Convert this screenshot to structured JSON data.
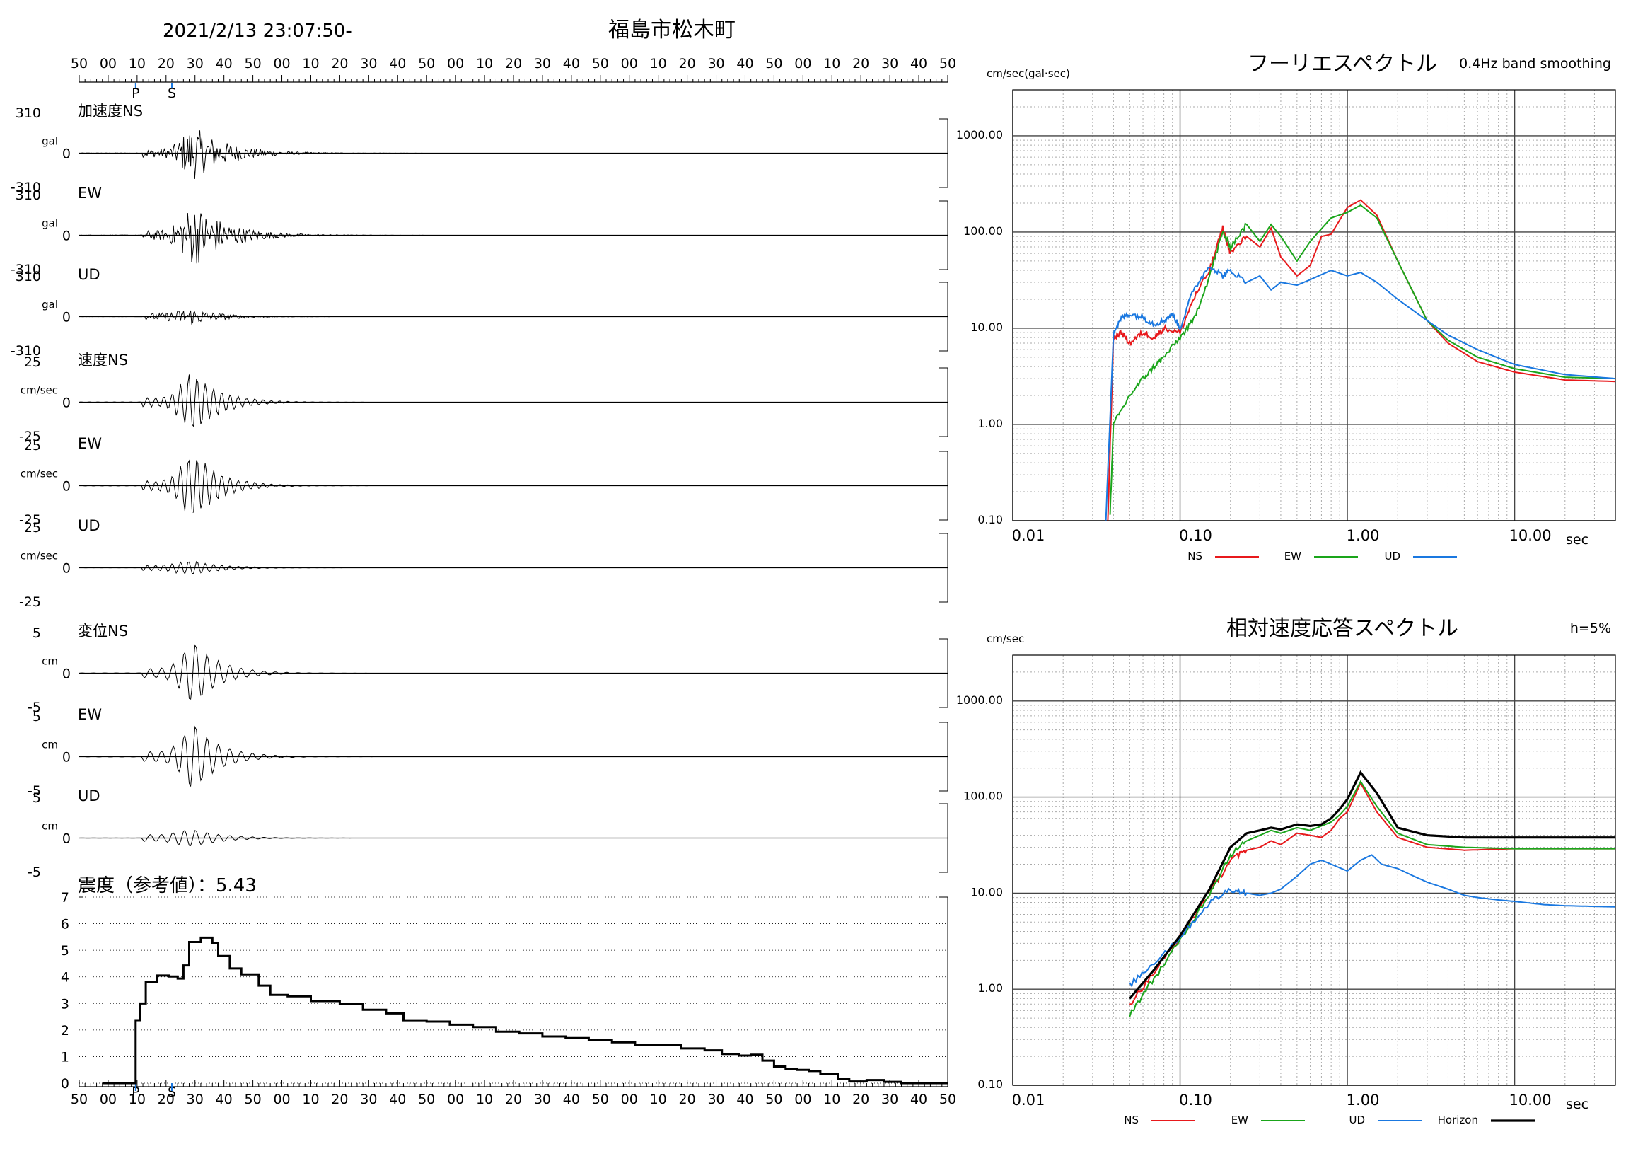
{
  "header": {
    "datetime": "2021/2/13 23:07:50-",
    "station": "福島市松木町"
  },
  "time_ticks": [
    "50",
    "00",
    "10",
    "20",
    "30",
    "40",
    "50",
    "00",
    "10",
    "20",
    "30",
    "40",
    "50",
    "00",
    "10",
    "20",
    "30",
    "40",
    "50",
    "00",
    "10",
    "20",
    "30",
    "40",
    "50",
    "00",
    "10",
    "20",
    "30",
    "40",
    "50"
  ],
  "markers": {
    "p": "P",
    "s": "S"
  },
  "colors": {
    "ns": "#e8191c",
    "ew": "#1aa51a",
    "ud": "#1a78e0",
    "horizon": "#000000",
    "marker": "#1a78e0"
  },
  "waveforms": [
    {
      "label": "加速度NS",
      "unit": "gal",
      "max": "310",
      "zero": "0",
      "min": "-310",
      "amp": 0.8,
      "style": "acc"
    },
    {
      "label": "EW",
      "unit": "gal",
      "max": "310",
      "zero": "0",
      "min": "-310",
      "amp": 0.95,
      "style": "acc"
    },
    {
      "label": "UD",
      "unit": "gal",
      "max": "310",
      "zero": "0",
      "min": "-310",
      "amp": 0.25,
      "style": "accud"
    },
    {
      "label": "速度NS",
      "unit": "cm/sec",
      "max": "25",
      "zero": "0",
      "min": "-25",
      "amp": 0.9,
      "style": "vel"
    },
    {
      "label": "EW",
      "unit": "cm/sec",
      "max": "25",
      "zero": "0",
      "min": "-25",
      "amp": 0.95,
      "style": "vel"
    },
    {
      "label": "UD",
      "unit": "cm/sec",
      "max": "25",
      "zero": "0",
      "min": "-25",
      "amp": 0.2,
      "style": "velud"
    },
    {
      "label": "変位NS",
      "unit": "cm",
      "max": "5",
      "zero": "0",
      "min": "-5",
      "amp": 0.9,
      "style": "disp"
    },
    {
      "label": "EW",
      "unit": "cm",
      "max": "5",
      "zero": "0",
      "min": "-5",
      "amp": 0.95,
      "style": "disp"
    },
    {
      "label": "UD",
      "unit": "cm",
      "max": "5",
      "zero": "0",
      "min": "-5",
      "amp": 0.25,
      "style": "dispud"
    }
  ],
  "intensity": {
    "label": "震度（参考値）：5.43",
    "yticks": [
      "7",
      "6",
      "5",
      "4",
      "3",
      "2",
      "1",
      "0"
    ]
  },
  "chart_data": [
    {
      "type": "line",
      "title": "フーリエスペクトル",
      "subtitle": "0.4Hz band smoothing",
      "ylabel": "cm/sec(gal·sec)",
      "xlabel": "sec",
      "xscale": "log",
      "yscale": "log",
      "xlim": [
        0.01,
        40
      ],
      "ylim": [
        0.1,
        3000
      ],
      "x_ticklabels": [
        "0.01",
        "0.10",
        "1.00",
        "10.00"
      ],
      "y_ticklabels": [
        "1000.00",
        "100.00",
        "10.00",
        "1.00",
        "0.10"
      ],
      "grid": true,
      "legend": "bottom",
      "series": [
        {
          "name": "NS",
          "color": "#e8191c",
          "points": [
            [
              0.037,
              0.1
            ],
            [
              0.04,
              8
            ],
            [
              0.045,
              9
            ],
            [
              0.05,
              7
            ],
            [
              0.06,
              9
            ],
            [
              0.07,
              8
            ],
            [
              0.08,
              10
            ],
            [
              0.1,
              9
            ],
            [
              0.12,
              20
            ],
            [
              0.15,
              40
            ],
            [
              0.18,
              110
            ],
            [
              0.2,
              60
            ],
            [
              0.25,
              90
            ],
            [
              0.3,
              70
            ],
            [
              0.35,
              110
            ],
            [
              0.4,
              55
            ],
            [
              0.5,
              35
            ],
            [
              0.6,
              45
            ],
            [
              0.7,
              90
            ],
            [
              0.8,
              95
            ],
            [
              1.0,
              180
            ],
            [
              1.2,
              215
            ],
            [
              1.5,
              150
            ],
            [
              2.0,
              50
            ],
            [
              3.0,
              12
            ],
            [
              4.0,
              7
            ],
            [
              6.0,
              4.5
            ],
            [
              10.0,
              3.5
            ],
            [
              20.0,
              2.9
            ],
            [
              40.0,
              2.8
            ]
          ]
        },
        {
          "name": "EW",
          "color": "#1aa51a",
          "points": [
            [
              0.038,
              0.1
            ],
            [
              0.04,
              1
            ],
            [
              0.05,
              2
            ],
            [
              0.06,
              3
            ],
            [
              0.07,
              4
            ],
            [
              0.08,
              5
            ],
            [
              0.1,
              8
            ],
            [
              0.12,
              12
            ],
            [
              0.15,
              35
            ],
            [
              0.18,
              100
            ],
            [
              0.2,
              70
            ],
            [
              0.25,
              120
            ],
            [
              0.3,
              80
            ],
            [
              0.35,
              120
            ],
            [
              0.4,
              90
            ],
            [
              0.5,
              50
            ],
            [
              0.6,
              80
            ],
            [
              0.8,
              140
            ],
            [
              1.0,
              160
            ],
            [
              1.2,
              190
            ],
            [
              1.5,
              140
            ],
            [
              2.0,
              50
            ],
            [
              3.0,
              12
            ],
            [
              4.0,
              7.5
            ],
            [
              6.0,
              5
            ],
            [
              10.0,
              3.8
            ],
            [
              20.0,
              3.1
            ],
            [
              40.0,
              3.0
            ]
          ]
        },
        {
          "name": "UD",
          "color": "#1a78e0",
          "points": [
            [
              0.036,
              0.1
            ],
            [
              0.04,
              9
            ],
            [
              0.045,
              13
            ],
            [
              0.05,
              14
            ],
            [
              0.06,
              13
            ],
            [
              0.07,
              11
            ],
            [
              0.08,
              12
            ],
            [
              0.09,
              14
            ],
            [
              0.1,
              10
            ],
            [
              0.12,
              25
            ],
            [
              0.15,
              45
            ],
            [
              0.18,
              35
            ],
            [
              0.2,
              40
            ],
            [
              0.25,
              30
            ],
            [
              0.3,
              35
            ],
            [
              0.35,
              25
            ],
            [
              0.4,
              30
            ],
            [
              0.5,
              28
            ],
            [
              0.6,
              32
            ],
            [
              0.8,
              40
            ],
            [
              1.0,
              35
            ],
            [
              1.2,
              38
            ],
            [
              1.5,
              30
            ],
            [
              2.0,
              20
            ],
            [
              3.0,
              12
            ],
            [
              4.0,
              8.5
            ],
            [
              6.0,
              6
            ],
            [
              10.0,
              4.2
            ],
            [
              20.0,
              3.3
            ],
            [
              40.0,
              3.0
            ]
          ]
        }
      ]
    },
    {
      "type": "line",
      "title": "相対速度応答スペクトル",
      "subtitle": "h=5%",
      "ylabel": "cm/sec",
      "xlabel": "sec",
      "xscale": "log",
      "yscale": "log",
      "xlim": [
        0.01,
        40
      ],
      "ylim": [
        0.1,
        3000
      ],
      "x_ticklabels": [
        "0.01",
        "0.10",
        "1.00",
        "10.00"
      ],
      "y_ticklabels": [
        "1000.00",
        "100.00",
        "10.00",
        "1.00",
        "0.10"
      ],
      "grid": true,
      "legend": "bottom",
      "series": [
        {
          "name": "NS",
          "color": "#e8191c",
          "points": [
            [
              0.05,
              0.7
            ],
            [
              0.07,
              1.5
            ],
            [
              0.1,
              3.5
            ],
            [
              0.15,
              10
            ],
            [
              0.2,
              22
            ],
            [
              0.25,
              28
            ],
            [
              0.3,
              30
            ],
            [
              0.35,
              35
            ],
            [
              0.4,
              32
            ],
            [
              0.5,
              42
            ],
            [
              0.6,
              40
            ],
            [
              0.7,
              38
            ],
            [
              0.8,
              45
            ],
            [
              0.9,
              60
            ],
            [
              1.0,
              70
            ],
            [
              1.2,
              140
            ],
            [
              1.5,
              70
            ],
            [
              2.0,
              38
            ],
            [
              3.0,
              30
            ],
            [
              5.0,
              28
            ],
            [
              10.0,
              29
            ],
            [
              20.0,
              29
            ],
            [
              40.0,
              29
            ]
          ]
        },
        {
          "name": "EW",
          "color": "#1aa51a",
          "points": [
            [
              0.05,
              0.55
            ],
            [
              0.07,
              1.3
            ],
            [
              0.1,
              3.2
            ],
            [
              0.15,
              10
            ],
            [
              0.2,
              25
            ],
            [
              0.25,
              35
            ],
            [
              0.3,
              40
            ],
            [
              0.35,
              45
            ],
            [
              0.4,
              42
            ],
            [
              0.5,
              48
            ],
            [
              0.6,
              45
            ],
            [
              0.7,
              50
            ],
            [
              0.8,
              55
            ],
            [
              0.9,
              65
            ],
            [
              1.0,
              80
            ],
            [
              1.2,
              145
            ],
            [
              1.5,
              80
            ],
            [
              2.0,
              42
            ],
            [
              3.0,
              32
            ],
            [
              5.0,
              30
            ],
            [
              10.0,
              29
            ],
            [
              20.0,
              29
            ],
            [
              40.0,
              29
            ]
          ]
        },
        {
          "name": "UD",
          "color": "#1a78e0",
          "points": [
            [
              0.05,
              1.1
            ],
            [
              0.07,
              1.9
            ],
            [
              0.1,
              3.5
            ],
            [
              0.15,
              8
            ],
            [
              0.2,
              11
            ],
            [
              0.25,
              10
            ],
            [
              0.3,
              9.5
            ],
            [
              0.35,
              10
            ],
            [
              0.4,
              11
            ],
            [
              0.5,
              15
            ],
            [
              0.6,
              20
            ],
            [
              0.7,
              22
            ],
            [
              0.8,
              20
            ],
            [
              1.0,
              17
            ],
            [
              1.2,
              22
            ],
            [
              1.4,
              25
            ],
            [
              1.6,
              20
            ],
            [
              2.0,
              18
            ],
            [
              2.5,
              15
            ],
            [
              3.0,
              13
            ],
            [
              4.0,
              11
            ],
            [
              5.0,
              9.5
            ],
            [
              6.0,
              9
            ],
            [
              8.0,
              8.5
            ],
            [
              10.0,
              8.2
            ],
            [
              15.0,
              7.6
            ],
            [
              20.0,
              7.4
            ],
            [
              40.0,
              7.2
            ]
          ]
        },
        {
          "name": "Horizon",
          "color": "#000000",
          "points": [
            [
              0.05,
              0.8
            ],
            [
              0.07,
              1.6
            ],
            [
              0.1,
              3.6
            ],
            [
              0.15,
              11
            ],
            [
              0.2,
              30
            ],
            [
              0.25,
              42
            ],
            [
              0.3,
              45
            ],
            [
              0.35,
              48
            ],
            [
              0.4,
              46
            ],
            [
              0.5,
              52
            ],
            [
              0.6,
              50
            ],
            [
              0.7,
              52
            ],
            [
              0.8,
              60
            ],
            [
              0.9,
              75
            ],
            [
              1.0,
              95
            ],
            [
              1.2,
              180
            ],
            [
              1.5,
              110
            ],
            [
              2.0,
              48
            ],
            [
              3.0,
              40
            ],
            [
              5.0,
              38
            ],
            [
              10.0,
              38
            ],
            [
              20.0,
              38
            ],
            [
              40.0,
              38
            ]
          ]
        }
      ]
    }
  ]
}
